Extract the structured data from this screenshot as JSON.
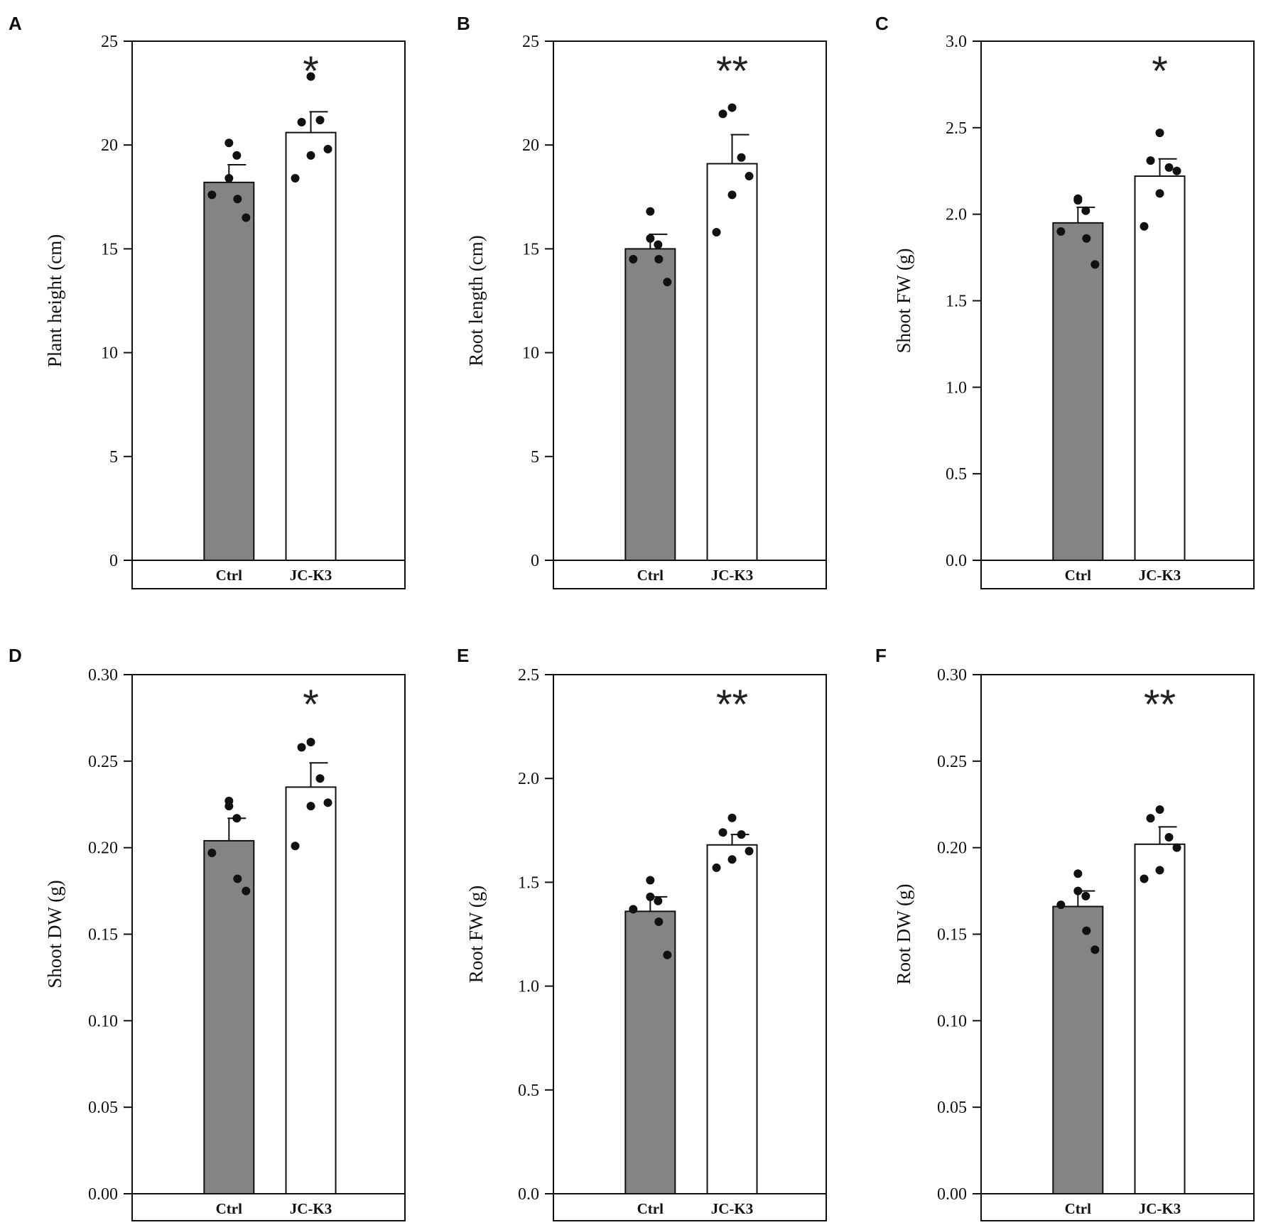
{
  "colors": {
    "ctrl_bar": "#848484",
    "treat_bar": "#ffffff",
    "axis": "#111111",
    "dot": "#111111"
  },
  "chart_data": [
    {
      "panel": "A",
      "type": "bar",
      "ylabel": "Plant height (cm)",
      "ylim": [
        0,
        25
      ],
      "yticks": [
        0,
        5,
        10,
        15,
        20,
        25
      ],
      "tick_decimals": 0,
      "categories": [
        "Ctrl",
        "JC-K3"
      ],
      "bars": [
        {
          "name": "Ctrl",
          "mean": 18.2,
          "se": 0.85,
          "points": [
            20.1,
            18.4,
            19.5,
            17.6,
            17.4,
            16.5
          ],
          "sig": ""
        },
        {
          "name": "JC-K3",
          "mean": 20.6,
          "se": 1.0,
          "points": [
            23.3,
            21.1,
            21.2,
            19.8,
            19.5,
            18.4
          ],
          "sig": "*"
        }
      ]
    },
    {
      "panel": "B",
      "type": "bar",
      "ylabel": "Root length (cm)",
      "ylim": [
        0,
        25
      ],
      "yticks": [
        0,
        5,
        10,
        15,
        20,
        25
      ],
      "tick_decimals": 0,
      "categories": [
        "Ctrl",
        "JC-K3"
      ],
      "bars": [
        {
          "name": "Ctrl",
          "mean": 15.0,
          "se": 0.7,
          "points": [
            16.8,
            15.5,
            15.2,
            14.5,
            14.5,
            13.4
          ],
          "sig": ""
        },
        {
          "name": "JC-K3",
          "mean": 19.1,
          "se": 1.4,
          "points": [
            21.8,
            21.5,
            19.4,
            18.5,
            17.6,
            15.8
          ],
          "sig": "**"
        }
      ]
    },
    {
      "panel": "C",
      "type": "bar",
      "ylabel": "Shoot FW (g)",
      "ylim": [
        0,
        3
      ],
      "yticks": [
        0.0,
        0.5,
        1.0,
        1.5,
        2.0,
        2.5,
        3.0
      ],
      "tick_decimals": 1,
      "categories": [
        "Ctrl",
        "JC-K3"
      ],
      "bars": [
        {
          "name": "Ctrl",
          "mean": 1.95,
          "se": 0.09,
          "points": [
            2.08,
            2.09,
            2.02,
            1.9,
            1.86,
            1.71
          ],
          "sig": ""
        },
        {
          "name": "JC-K3",
          "mean": 2.22,
          "se": 0.1,
          "points": [
            2.47,
            2.31,
            2.27,
            2.25,
            2.12,
            1.93
          ],
          "sig": "*"
        }
      ]
    },
    {
      "panel": "D",
      "type": "bar",
      "ylabel": "Shoot DW (g)",
      "ylim": [
        0,
        0.3
      ],
      "yticks": [
        0.0,
        0.05,
        0.1,
        0.15,
        0.2,
        0.25,
        0.3
      ],
      "tick_decimals": 2,
      "categories": [
        "Ctrl",
        "JC-K3"
      ],
      "bars": [
        {
          "name": "Ctrl",
          "mean": 0.204,
          "se": 0.013,
          "points": [
            0.227,
            0.224,
            0.217,
            0.197,
            0.182,
            0.175
          ],
          "sig": ""
        },
        {
          "name": "JC-K3",
          "mean": 0.235,
          "se": 0.014,
          "points": [
            0.261,
            0.258,
            0.24,
            0.226,
            0.224,
            0.201
          ],
          "sig": "*"
        }
      ]
    },
    {
      "panel": "E",
      "type": "bar",
      "ylabel": "Root FW (g)",
      "ylim": [
        0,
        2.5
      ],
      "yticks": [
        0.0,
        0.5,
        1.0,
        1.5,
        2.0,
        2.5
      ],
      "tick_decimals": 1,
      "categories": [
        "Ctrl",
        "JC-K3"
      ],
      "bars": [
        {
          "name": "Ctrl",
          "mean": 1.36,
          "se": 0.07,
          "points": [
            1.51,
            1.43,
            1.41,
            1.37,
            1.31,
            1.15
          ],
          "sig": ""
        },
        {
          "name": "JC-K3",
          "mean": 1.68,
          "se": 0.05,
          "points": [
            1.81,
            1.74,
            1.73,
            1.65,
            1.61,
            1.57
          ],
          "sig": "**"
        }
      ]
    },
    {
      "panel": "F",
      "type": "bar",
      "ylabel": "Root DW (g)",
      "ylim": [
        0,
        0.3
      ],
      "yticks": [
        0.0,
        0.05,
        0.1,
        0.15,
        0.2,
        0.25,
        0.3
      ],
      "tick_decimals": 2,
      "categories": [
        "Ctrl",
        "JC-K3"
      ],
      "bars": [
        {
          "name": "Ctrl",
          "mean": 0.166,
          "se": 0.009,
          "points": [
            0.185,
            0.175,
            0.172,
            0.167,
            0.152,
            0.141
          ],
          "sig": ""
        },
        {
          "name": "JC-K3",
          "mean": 0.202,
          "se": 0.01,
          "points": [
            0.222,
            0.217,
            0.206,
            0.2,
            0.187,
            0.182
          ],
          "sig": "**"
        }
      ]
    }
  ]
}
